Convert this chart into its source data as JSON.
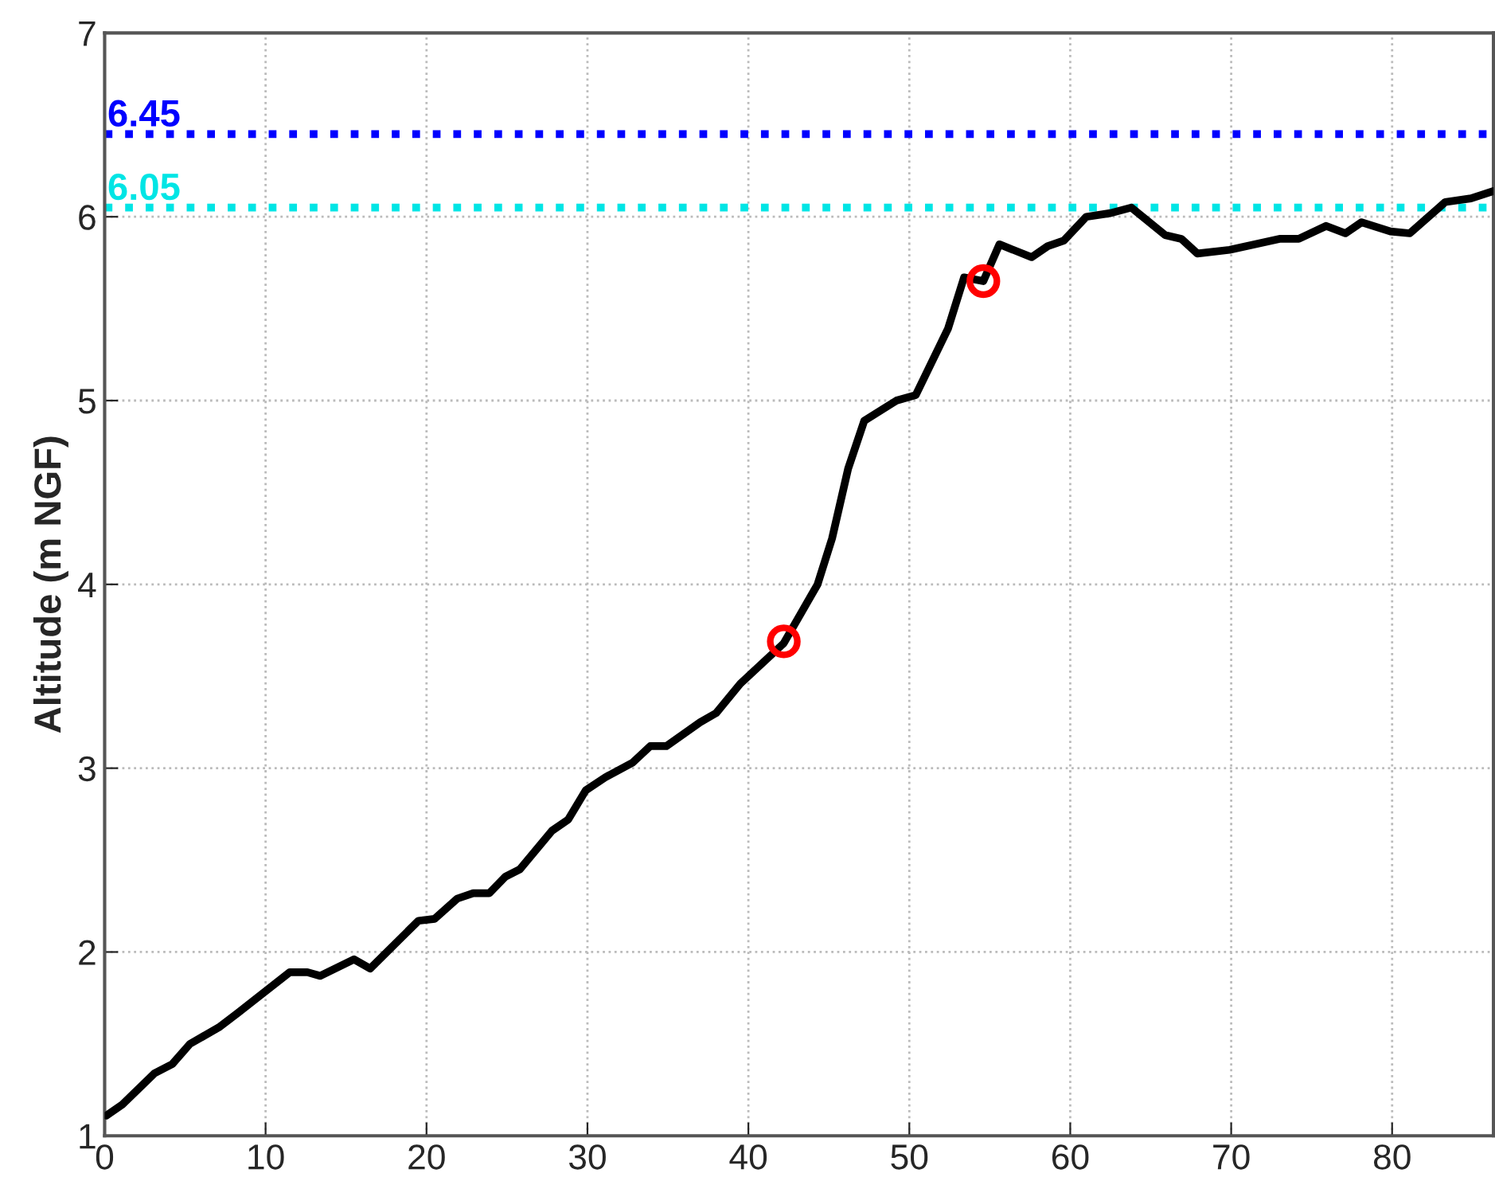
{
  "chart_data": {
    "type": "line",
    "ylabel": "Altitude (m NGF)",
    "xlim": [
      0,
      86.3
    ],
    "ylim": [
      1,
      7
    ],
    "xticks": [
      0,
      10,
      20,
      30,
      40,
      50,
      60,
      70,
      80
    ],
    "yticks": [
      1,
      2,
      3,
      4,
      5,
      6,
      7
    ],
    "grid": true,
    "series": [
      {
        "color": "#000000",
        "marker": "none",
        "line_style": "solid",
        "x": [
          0.1,
          1.1,
          3.1,
          4.2,
          5.3,
          7.1,
          8.3,
          11.5,
          12.6,
          13.4,
          15.5,
          16.5,
          19.5,
          20.5,
          21.9,
          22.9,
          23.9,
          24.9,
          25.8,
          27.8,
          28.8,
          29.9,
          31.1,
          32.8,
          33.9,
          34.9,
          37.0,
          38.0,
          39.5,
          42.2,
          44.3,
          45.2,
          46.2,
          47.2,
          49.2,
          50.4,
          52.4,
          53.4,
          54.6,
          55.6,
          57.6,
          58.6,
          59.6,
          61.0,
          62.5,
          63.8,
          65.9,
          66.9,
          67.9,
          69.9,
          73.0,
          74.2,
          75.9,
          77.1,
          78.1,
          79.9,
          81.1,
          83.3,
          84.9,
          86.3
        ],
        "values": [
          1.11,
          1.17,
          1.34,
          1.39,
          1.5,
          1.59,
          1.67,
          1.89,
          1.89,
          1.87,
          1.96,
          1.91,
          2.17,
          2.18,
          2.29,
          2.32,
          2.32,
          2.41,
          2.45,
          2.66,
          2.72,
          2.88,
          2.95,
          3.03,
          3.12,
          3.12,
          3.25,
          3.3,
          3.46,
          3.68,
          4.0,
          4.25,
          4.63,
          4.89,
          5.0,
          5.03,
          5.39,
          5.67,
          5.65,
          5.85,
          5.78,
          5.84,
          5.87,
          6.0,
          6.02,
          6.05,
          5.9,
          5.88,
          5.8,
          5.82,
          5.88,
          5.88,
          5.95,
          5.91,
          5.97,
          5.92,
          5.91,
          6.08,
          6.1,
          6.14
        ]
      },
      {
        "type": "scatter",
        "color": "#ff0000",
        "marker": "circle",
        "x": [
          42.2,
          54.6
        ],
        "values": [
          3.69,
          5.65
        ]
      }
    ],
    "ref_lines": [
      {
        "axis": "y",
        "value": 6.45,
        "label": "6.45",
        "color": "#0000ff",
        "line_style": "dotted"
      },
      {
        "axis": "y",
        "value": 6.05,
        "label": "6.05",
        "color": "#00e5e5",
        "line_style": "dotted"
      }
    ]
  }
}
